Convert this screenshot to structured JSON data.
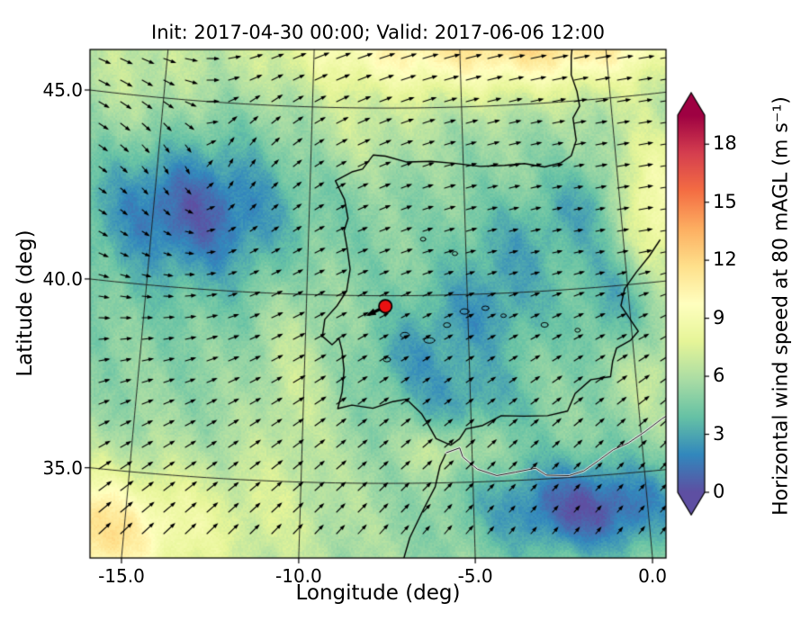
{
  "chart_data": {
    "type": "heatmap",
    "title": "Init: 2017-04-30 00:00; Valid: 2017-06-06 12:00",
    "xlabel": "Longitude (deg)",
    "ylabel": "Latitude (deg)",
    "x_ticks": [
      -15.0,
      -10.0,
      -5.0,
      0.0
    ],
    "x_tick_labels": [
      "-15.0",
      "-10.0",
      "-5.0",
      "0.0"
    ],
    "y_ticks": [
      35.0,
      40.0,
      45.0
    ],
    "y_tick_labels": [
      "35.0",
      "40.0",
      "45.0"
    ],
    "projection": "conic",
    "extent": {
      "lon_min": -17.6,
      "lon_max": 2.6,
      "lat_min": 32.6,
      "lat_max": 46.6
    },
    "grid": true,
    "colorbar": {
      "label": "Horizontal wind speed at 80 mAGL (m s⁻¹)",
      "ticks": [
        0,
        3,
        6,
        9,
        12,
        15,
        18
      ],
      "tick_labels": [
        "0",
        "3",
        "6",
        "9",
        "12",
        "15",
        "18"
      ],
      "vmin": 0,
      "vmax": 19.5,
      "extend": "both",
      "orientation": "vertical",
      "colors": [
        "#5e4fa2",
        "#3288bd",
        "#66c2a5",
        "#abdda4",
        "#e6f598",
        "#ffffbf",
        "#fee08b",
        "#fdae61",
        "#f46d43",
        "#d53e4f",
        "#9e0142"
      ]
    },
    "site_marker": {
      "lon": -7.55,
      "lat": 39.72,
      "color": "#e81111",
      "edge": "#000000"
    },
    "style": {
      "grid_color": "#1a1a1a",
      "coast_color": "#000000",
      "arrow_color": "#000000",
      "frame_color": "#000000"
    },
    "quiver": {
      "spacing_px": 24,
      "color": "#000000"
    },
    "wind_field": {
      "units": "m s⁻¹",
      "base": 5.2,
      "blobs": [
        {
          "lon": -13.8,
          "lat": 42.1,
          "sx": 2.0,
          "sy": 1.2,
          "amp": -3.4
        },
        {
          "lon": -13.5,
          "lat": 41.8,
          "sx": 3.5,
          "sy": 2.2,
          "amp": -1.2
        },
        {
          "lon": -1.5,
          "lat": 46.9,
          "sx": 4.0,
          "sy": 1.1,
          "amp": 7.0
        },
        {
          "lon": -8.5,
          "lat": 46.6,
          "sx": 3.0,
          "sy": 1.0,
          "amp": 3.0
        },
        {
          "lon": -16.3,
          "lat": 33.2,
          "sx": 1.8,
          "sy": 1.1,
          "amp": 5.5
        },
        {
          "lon": -13.0,
          "lat": 33.8,
          "sx": 3.0,
          "sy": 1.4,
          "amp": 2.2
        },
        {
          "lon": -4.6,
          "lat": 39.5,
          "sx": 1.5,
          "sy": 0.9,
          "amp": -2.4
        },
        {
          "lon": -3.4,
          "lat": 41.3,
          "sx": 1.3,
          "sy": 0.9,
          "amp": -1.8
        },
        {
          "lon": -0.9,
          "lat": 42.3,
          "sx": 1.0,
          "sy": 0.8,
          "amp": -2.0
        },
        {
          "lon": -0.2,
          "lat": 39.6,
          "sx": 0.9,
          "sy": 1.4,
          "amp": -2.6
        },
        {
          "lon": -2.6,
          "lat": 34.3,
          "sx": 1.8,
          "sy": 0.9,
          "amp": -3.2
        },
        {
          "lon": -0.8,
          "lat": 34.0,
          "sx": 1.5,
          "sy": 0.8,
          "amp": -2.5
        },
        {
          "lon": -5.2,
          "lat": 37.2,
          "sx": 1.4,
          "sy": 0.8,
          "amp": -2.2
        },
        {
          "lon": -6.8,
          "lat": 38.4,
          "sx": 1.0,
          "sy": 0.7,
          "amp": -1.6
        },
        {
          "lon": 1.0,
          "lat": 42.0,
          "sx": 1.0,
          "sy": 1.5,
          "amp": 4.5
        },
        {
          "lon": 0.3,
          "lat": 37.8,
          "sx": 0.8,
          "sy": 1.0,
          "amp": 2.2
        },
        {
          "lon": -10.3,
          "lat": 37.8,
          "sx": 0.9,
          "sy": 2.2,
          "amp": 1.6
        },
        {
          "lon": -8.4,
          "lat": 44.2,
          "sx": 1.5,
          "sy": 0.8,
          "amp": 1.4
        },
        {
          "lon": -5.7,
          "lat": 35.9,
          "sx": 1.0,
          "sy": 0.5,
          "amp": 1.8
        },
        {
          "lon": -16.0,
          "lat": 45.5,
          "sx": 2.0,
          "sy": 1.5,
          "amp": 1.5
        }
      ],
      "vortex": {
        "lon": -13.6,
        "lat": 42.0,
        "strength": 2.5,
        "core": 2.0
      }
    },
    "geo": {
      "coastlines": [
        [
          [
            -1.05,
            46.8
          ],
          [
            -1.2,
            46.2
          ],
          [
            -1.25,
            45.7
          ],
          [
            -1.1,
            45.25
          ],
          [
            -1.05,
            44.85
          ],
          [
            -1.3,
            44.55
          ],
          [
            -1.25,
            43.95
          ],
          [
            -1.45,
            43.55
          ],
          [
            -1.8,
            43.38
          ],
          [
            -2.35,
            43.3
          ],
          [
            -3.0,
            43.42
          ],
          [
            -3.65,
            43.4
          ],
          [
            -4.45,
            43.4
          ],
          [
            -5.25,
            43.5
          ],
          [
            -6.05,
            43.57
          ],
          [
            -6.85,
            43.56
          ],
          [
            -7.55,
            43.72
          ],
          [
            -7.95,
            43.75
          ],
          [
            -8.3,
            43.37
          ],
          [
            -8.62,
            43.3
          ],
          [
            -9.18,
            43.05
          ],
          [
            -8.87,
            42.55
          ],
          [
            -8.75,
            42.05
          ],
          [
            -8.87,
            41.72
          ],
          [
            -8.75,
            41.2
          ],
          [
            -8.66,
            40.7
          ],
          [
            -8.76,
            40.12
          ],
          [
            -9.05,
            39.72
          ],
          [
            -9.42,
            39.35
          ],
          [
            -9.48,
            38.9
          ],
          [
            -9.18,
            38.68
          ],
          [
            -8.97,
            38.85
          ],
          [
            -8.87,
            38.52
          ],
          [
            -8.8,
            38.0
          ],
          [
            -8.85,
            37.42
          ],
          [
            -8.97,
            36.98
          ],
          [
            -8.55,
            37.08
          ],
          [
            -7.92,
            37.0
          ],
          [
            -7.32,
            37.18
          ],
          [
            -6.92,
            37.24
          ],
          [
            -6.47,
            36.85
          ],
          [
            -6.26,
            36.53
          ],
          [
            -6.05,
            36.18
          ],
          [
            -5.62,
            36.0
          ],
          [
            -5.36,
            36.16
          ],
          [
            -5.16,
            36.42
          ],
          [
            -4.66,
            36.5
          ],
          [
            -4.1,
            36.74
          ],
          [
            -3.42,
            36.7
          ],
          [
            -2.72,
            36.68
          ],
          [
            -2.12,
            36.77
          ],
          [
            -1.86,
            37.22
          ],
          [
            -1.36,
            37.56
          ],
          [
            -0.76,
            37.6
          ],
          [
            -0.66,
            38.0
          ],
          [
            -0.51,
            38.34
          ],
          [
            -0.06,
            38.52
          ],
          [
            0.2,
            38.74
          ],
          [
            -0.26,
            39.46
          ],
          [
            -0.1,
            39.9
          ],
          [
            0.3,
            40.3
          ],
          [
            0.76,
            40.7
          ],
          [
            1.15,
            41.1
          ]
        ],
        [
          [
            -7.15,
            32.6
          ],
          [
            -6.85,
            33.55
          ],
          [
            -6.45,
            34.3
          ],
          [
            -6.1,
            34.9
          ],
          [
            -5.95,
            35.45
          ],
          [
            -5.76,
            35.8
          ]
        ],
        [
          [
            -5.76,
            35.8
          ],
          [
            -5.36,
            35.92
          ],
          [
            -5.28,
            35.68
          ],
          [
            -4.86,
            35.34
          ],
          [
            -4.3,
            35.15
          ],
          [
            -3.76,
            35.22
          ],
          [
            -3.16,
            35.3
          ],
          [
            -2.86,
            35.1
          ],
          [
            -2.2,
            35.05
          ],
          [
            -1.76,
            35.15
          ],
          [
            -1.3,
            35.4
          ],
          [
            -0.86,
            35.65
          ],
          [
            -0.4,
            35.8
          ],
          [
            0.1,
            36.05
          ],
          [
            0.66,
            36.36
          ],
          [
            1.15,
            36.58
          ]
        ]
      ],
      "lakes": [
        {
          "lon": -6.95,
          "lat": 38.95,
          "rx": 5,
          "ry": 3
        },
        {
          "lon": -6.2,
          "lat": 38.8,
          "rx": 6,
          "ry": 3
        },
        {
          "lon": -5.65,
          "lat": 39.2,
          "rx": 4,
          "ry": 2.6
        },
        {
          "lon": -5.1,
          "lat": 39.55,
          "rx": 5,
          "ry": 3
        },
        {
          "lon": -4.45,
          "lat": 39.62,
          "rx": 4,
          "ry": 2.4
        },
        {
          "lon": -7.5,
          "lat": 38.3,
          "rx": 4,
          "ry": 2.6
        },
        {
          "lon": -2.65,
          "lat": 39.1,
          "rx": 4,
          "ry": 2.6
        },
        {
          "lon": -1.65,
          "lat": 38.9,
          "rx": 3,
          "ry": 2.2
        },
        {
          "lon": -5.35,
          "lat": 41.1,
          "rx": 3,
          "ry": 2.2
        },
        {
          "lon": -6.35,
          "lat": 41.5,
          "rx": 3,
          "ry": 2.2
        },
        {
          "lon": -3.9,
          "lat": 39.4,
          "rx": 3,
          "ry": 2
        }
      ]
    }
  }
}
